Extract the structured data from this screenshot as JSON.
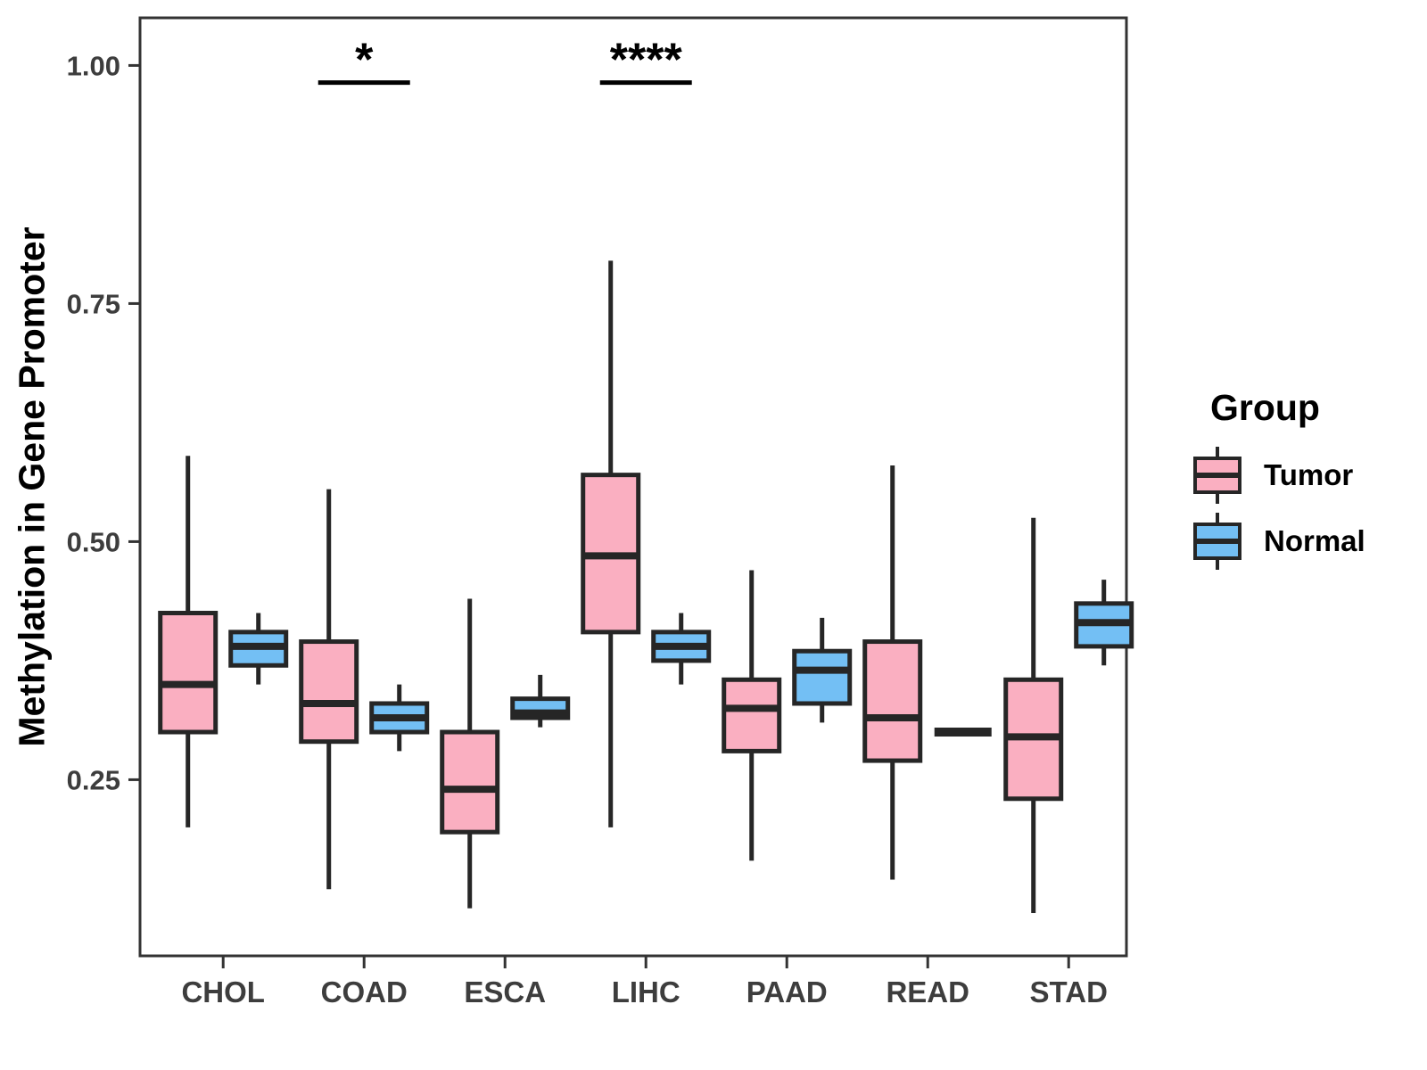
{
  "chart_data": {
    "type": "boxplot",
    "title": "",
    "xlabel": "",
    "ylabel": "Methylation in Gene Promoter",
    "ylim": [
      0.065,
      1.05
    ],
    "yticks": [
      0.25,
      0.5,
      0.75,
      1.0
    ],
    "grid": false,
    "categories": [
      "CHOL",
      "COAD",
      "ESCA",
      "LIHC",
      "PAAD",
      "READ",
      "STAD"
    ],
    "legend": {
      "title": "Group",
      "position": "right",
      "entries": [
        {
          "label": "Tumor",
          "color": "#FAAFC1"
        },
        {
          "label": "Normal",
          "color": "#73BFF4"
        }
      ]
    },
    "colors": {
      "tumor": "#FAAFC1",
      "normal": "#73BFF4",
      "stroke": "#262626",
      "axis": "#333333",
      "tick_text": "#3D3D3D",
      "significance": "#000000"
    },
    "series": [
      {
        "name": "Tumor",
        "color": "#FAAFC1",
        "boxes": [
          {
            "category": "CHOL",
            "min": 0.2,
            "q1": 0.3,
            "median": 0.35,
            "q3": 0.425,
            "max": 0.59
          },
          {
            "category": "COAD",
            "min": 0.135,
            "q1": 0.29,
            "median": 0.33,
            "q3": 0.395,
            "max": 0.555
          },
          {
            "category": "ESCA",
            "min": 0.115,
            "q1": 0.195,
            "median": 0.24,
            "q3": 0.3,
            "max": 0.44
          },
          {
            "category": "LIHC",
            "min": 0.2,
            "q1": 0.405,
            "median": 0.485,
            "q3": 0.57,
            "max": 0.795
          },
          {
            "category": "PAAD",
            "min": 0.165,
            "q1": 0.28,
            "median": 0.325,
            "q3": 0.355,
            "max": 0.47
          },
          {
            "category": "READ",
            "min": 0.145,
            "q1": 0.27,
            "median": 0.315,
            "q3": 0.395,
            "max": 0.58
          },
          {
            "category": "STAD",
            "min": 0.11,
            "q1": 0.23,
            "median": 0.295,
            "q3": 0.355,
            "max": 0.525
          }
        ]
      },
      {
        "name": "Normal",
        "color": "#73BFF4",
        "boxes": [
          {
            "category": "CHOL",
            "min": 0.35,
            "q1": 0.37,
            "median": 0.39,
            "q3": 0.405,
            "max": 0.425
          },
          {
            "category": "COAD",
            "min": 0.28,
            "q1": 0.3,
            "median": 0.315,
            "q3": 0.33,
            "max": 0.35
          },
          {
            "category": "ESCA",
            "min": 0.305,
            "q1": 0.315,
            "median": 0.32,
            "q3": 0.335,
            "max": 0.36
          },
          {
            "category": "LIHC",
            "min": 0.35,
            "q1": 0.375,
            "median": 0.39,
            "q3": 0.405,
            "max": 0.425
          },
          {
            "category": "PAAD",
            "min": 0.31,
            "q1": 0.33,
            "median": 0.365,
            "q3": 0.385,
            "max": 0.42
          },
          {
            "category": "READ",
            "min": 0.3,
            "q1": 0.3,
            "median": 0.3,
            "q3": 0.3,
            "max": 0.3
          },
          {
            "category": "STAD",
            "min": 0.37,
            "q1": 0.39,
            "median": 0.415,
            "q3": 0.435,
            "max": 0.46
          }
        ]
      }
    ],
    "annotations": [
      {
        "category": "COAD",
        "label": "*",
        "bar_y": 0.982
      },
      {
        "category": "LIHC",
        "label": "****",
        "bar_y": 0.982
      }
    ]
  }
}
